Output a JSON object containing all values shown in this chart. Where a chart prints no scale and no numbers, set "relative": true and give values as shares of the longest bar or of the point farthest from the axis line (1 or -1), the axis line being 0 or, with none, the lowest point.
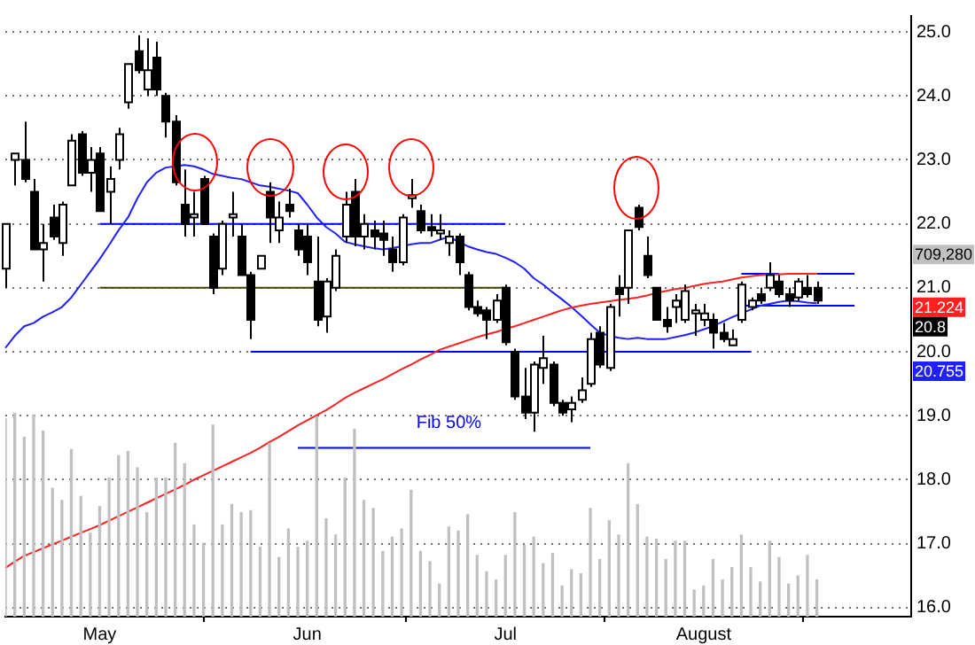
{
  "chart_data": [
    {
      "type": "candlestick",
      "categories": [
        null,
        null,
        null,
        null,
        null,
        null,
        null,
        null,
        null,
        null,
        "May",
        null,
        null,
        null,
        null,
        null,
        null,
        null,
        null,
        null,
        null,
        null,
        null,
        null,
        null,
        null,
        null,
        null,
        null,
        null,
        null,
        null,
        "Jun",
        null,
        null,
        null,
        null,
        null,
        null,
        null,
        null,
        null,
        null,
        null,
        null,
        null,
        null,
        null,
        null,
        null,
        null,
        null,
        null,
        "Jul",
        null,
        null,
        null,
        null,
        null,
        null,
        null,
        null,
        null,
        null,
        null,
        null,
        null,
        null,
        null,
        null,
        null,
        null,
        null,
        null,
        "August",
        null,
        null,
        null,
        null,
        null,
        null,
        null,
        null,
        null,
        null,
        null,
        null,
        null,
        null,
        null,
        null,
        null,
        null,
        null,
        null,
        null,
        null
      ],
      "ohlc": [
        [
          21.3,
          22.0,
          21.0,
          22.0
        ],
        [
          23.0,
          23.1,
          22.6,
          23.1
        ],
        [
          23.0,
          23.6,
          22.65,
          22.7
        ],
        [
          22.5,
          22.7,
          21.6,
          21.6
        ],
        [
          21.6,
          22.0,
          21.1,
          21.7
        ],
        [
          22.1,
          22.3,
          21.75,
          21.8
        ],
        [
          21.7,
          22.35,
          21.5,
          22.3
        ],
        [
          22.6,
          23.4,
          22.6,
          23.3
        ],
        [
          23.4,
          23.45,
          22.75,
          22.8
        ],
        [
          22.8,
          23.2,
          22.5,
          23.0
        ],
        [
          23.1,
          23.2,
          22.2,
          22.2
        ],
        [
          22.5,
          22.9,
          22.0,
          22.7
        ],
        [
          23.0,
          23.5,
          22.85,
          23.4
        ],
        [
          23.9,
          24.5,
          23.8,
          24.5
        ],
        [
          24.7,
          24.95,
          24.35,
          24.4
        ],
        [
          24.1,
          24.9,
          24.0,
          24.4
        ],
        [
          24.6,
          24.85,
          24.0,
          24.1
        ],
        [
          24.0,
          24.05,
          23.35,
          23.6
        ],
        [
          23.6,
          23.7,
          22.6,
          22.65
        ],
        [
          22.3,
          22.85,
          21.8,
          22.0
        ],
        [
          22.1,
          22.5,
          21.8,
          22.15
        ],
        [
          22.7,
          22.75,
          22.0,
          22.0
        ],
        [
          21.8,
          21.85,
          20.9,
          21.0
        ],
        [
          21.3,
          22.05,
          21.2,
          22.0
        ],
        [
          22.1,
          22.5,
          21.8,
          22.15
        ],
        [
          21.8,
          22.0,
          21.2,
          21.2
        ],
        [
          21.2,
          21.25,
          20.2,
          20.5
        ],
        [
          21.3,
          21.5,
          21.3,
          21.5
        ],
        [
          22.5,
          22.65,
          21.7,
          22.1
        ],
        [
          21.9,
          22.35,
          21.7,
          22.1
        ],
        [
          22.3,
          22.55,
          22.1,
          22.2
        ],
        [
          21.9,
          22.0,
          21.5,
          21.6
        ],
        [
          21.8,
          22.0,
          21.2,
          21.4
        ],
        [
          21.1,
          21.8,
          20.4,
          20.5
        ],
        [
          20.55,
          21.15,
          20.3,
          21.1
        ],
        [
          21.0,
          21.6,
          20.95,
          21.5
        ],
        [
          21.8,
          22.5,
          21.7,
          22.3
        ],
        [
          22.5,
          22.7,
          21.65,
          21.8
        ],
        [
          21.8,
          22.15,
          21.6,
          22.0
        ],
        [
          21.9,
          22.05,
          21.6,
          21.8
        ],
        [
          21.85,
          22.05,
          21.5,
          21.75
        ],
        [
          21.6,
          21.8,
          21.25,
          21.4
        ],
        [
          21.4,
          22.15,
          21.35,
          22.1
        ],
        [
          22.4,
          22.7,
          22.25,
          22.45
        ],
        [
          22.2,
          22.3,
          21.85,
          21.9
        ],
        [
          21.95,
          22.15,
          21.8,
          21.9
        ],
        [
          21.85,
          22.15,
          21.75,
          21.9
        ],
        [
          21.7,
          21.9,
          21.5,
          21.8
        ],
        [
          21.8,
          21.85,
          21.2,
          21.4
        ],
        [
          21.2,
          21.25,
          20.65,
          20.7
        ],
        [
          20.7,
          20.8,
          20.55,
          20.6
        ],
        [
          20.65,
          20.7,
          20.2,
          20.5
        ],
        [
          20.5,
          20.9,
          20.45,
          20.8
        ],
        [
          21.0,
          21.05,
          20.1,
          20.15
        ],
        [
          20.0,
          20.05,
          19.25,
          19.3
        ],
        [
          19.3,
          19.75,
          18.95,
          19.05
        ],
        [
          19.05,
          19.85,
          18.75,
          19.8
        ],
        [
          19.75,
          20.25,
          19.5,
          19.9
        ],
        [
          19.8,
          19.85,
          19.15,
          19.2
        ],
        [
          19.2,
          19.25,
          19.0,
          19.05
        ],
        [
          19.1,
          19.3,
          18.9,
          19.2
        ],
        [
          19.25,
          19.6,
          19.2,
          19.4
        ],
        [
          19.5,
          20.3,
          19.45,
          20.2
        ],
        [
          20.3,
          20.4,
          19.75,
          19.8
        ],
        [
          19.75,
          20.75,
          19.7,
          20.7
        ],
        [
          21.0,
          21.2,
          20.55,
          20.9
        ],
        [
          21.0,
          21.9,
          20.75,
          21.9
        ],
        [
          22.25,
          22.3,
          21.9,
          21.95
        ],
        [
          21.5,
          21.8,
          21.15,
          21.2
        ],
        [
          21.0,
          21.0,
          20.5,
          20.5
        ],
        [
          20.5,
          20.7,
          20.3,
          20.4
        ],
        [
          20.7,
          20.9,
          20.45,
          20.8
        ],
        [
          20.5,
          21.05,
          20.45,
          20.95
        ],
        [
          20.6,
          20.75,
          20.25,
          20.65
        ],
        [
          20.5,
          20.75,
          20.4,
          20.6
        ],
        [
          20.5,
          20.6,
          20.05,
          20.3
        ],
        [
          20.3,
          20.45,
          20.15,
          20.2
        ],
        [
          20.1,
          20.35,
          20.1,
          20.2
        ],
        [
          20.5,
          21.1,
          20.45,
          21.05
        ],
        [
          20.7,
          20.85,
          20.65,
          20.8
        ],
        [
          20.9,
          21.0,
          20.75,
          20.8
        ],
        [
          21.0,
          21.4,
          20.95,
          21.2
        ],
        [
          21.1,
          21.2,
          20.85,
          20.9
        ],
        [
          20.9,
          21.0,
          20.7,
          20.8
        ],
        [
          20.85,
          21.15,
          20.8,
          21.1
        ],
        [
          21.0,
          21.2,
          20.85,
          20.9
        ],
        [
          21.0,
          21.1,
          20.75,
          20.8
        ],
        null,
        null,
        null,
        null,
        null,
        null,
        null,
        null,
        null,
        null
      ],
      "colors": [
        "#ffffff",
        "#ffffff",
        "#000000",
        "#000000",
        "#ffffff",
        "#000000",
        "#ffffff",
        "#ffffff",
        "#000000",
        "#ffffff",
        "#000000",
        "#ffffff",
        "#ffffff",
        "#ffffff",
        "#000000",
        "#ffffff",
        "#000000",
        "#000000",
        "#000000",
        "#000000",
        "#ffffff",
        "#000000",
        "#000000",
        "#ffffff",
        "#ffffff",
        "#000000",
        "#000000",
        "#ffffff",
        "#000000",
        "#ffffff",
        "#000000",
        "#000000",
        "#000000",
        "#000000",
        "#ffffff",
        "#ffffff",
        "#ffffff",
        "#000000",
        "#ffffff",
        "#000000",
        "#000000",
        "#000000",
        "#ffffff",
        "#ffffff",
        "#000000",
        "#000000",
        "#ffffff",
        "#ffffff",
        "#000000",
        "#000000",
        "#000000",
        "#000000",
        "#ffffff",
        "#000000",
        "#000000",
        "#000000",
        "#ffffff",
        "#ffffff",
        "#000000",
        "#000000",
        "#ffffff",
        "#ffffff",
        "#ffffff",
        "#000000",
        "#ffffff",
        "#000000",
        "#ffffff",
        "#000000",
        "#000000",
        "#000000",
        "#000000",
        "#ffffff",
        "#ffffff",
        "#ffffff",
        "#ffffff",
        "#000000",
        "#000000",
        "#ffffff",
        "#ffffff",
        "#ffffff",
        "#000000",
        "#ffffff",
        "#000000",
        "#000000",
        "#ffffff",
        "#000000",
        "#000000",
        null,
        null,
        null,
        null,
        null,
        null,
        null,
        null,
        null,
        null
      ],
      "series": [
        {
          "type": "line",
          "color": "#ff2020",
          "values": [
            16.62,
            16.72,
            16.81,
            16.87,
            16.93,
            16.99,
            17.05,
            17.11,
            17.17,
            17.23,
            17.29,
            17.36,
            17.43,
            17.5,
            17.57,
            17.64,
            17.71,
            17.78,
            17.85,
            17.92,
            18.0,
            18.07,
            18.14,
            18.21,
            18.28,
            18.35,
            18.42,
            18.5,
            18.59,
            18.67,
            18.76,
            18.85,
            18.93,
            19.01,
            19.09,
            19.18,
            19.28,
            19.36,
            19.43,
            19.5,
            19.57,
            19.65,
            19.73,
            19.8,
            19.88,
            19.95,
            20.03,
            20.08,
            20.13,
            20.18,
            20.23,
            20.27,
            20.31,
            20.36,
            20.4,
            20.45,
            20.5,
            20.55,
            20.6,
            20.65,
            20.69,
            20.72,
            20.75,
            20.77,
            20.79,
            20.81,
            20.83,
            20.85,
            20.88,
            20.92,
            20.95,
            20.98,
            21.0,
            21.03,
            21.06,
            21.08,
            21.1,
            21.13,
            21.16,
            21.18,
            21.2,
            21.21,
            21.21,
            21.22,
            21.22,
            21.22,
            21.22,
            null,
            null,
            null,
            null,
            null,
            null,
            null,
            null,
            null,
            null
          ]
        },
        {
          "type": "line",
          "color": "#2020ff",
          "values": [
            20.06,
            20.25,
            20.4,
            20.45,
            20.55,
            20.62,
            20.7,
            20.85,
            21.05,
            21.25,
            21.45,
            21.67,
            21.9,
            22.1,
            22.4,
            22.65,
            22.8,
            22.88,
            22.9,
            22.92,
            22.9,
            22.85,
            22.78,
            22.75,
            22.72,
            22.7,
            22.65,
            22.6,
            22.58,
            22.55,
            22.52,
            22.48,
            22.3,
            22.1,
            21.95,
            21.85,
            21.72,
            21.68,
            21.65,
            21.62,
            21.6,
            21.62,
            21.65,
            21.68,
            21.7,
            21.7,
            21.75,
            21.8,
            21.72,
            21.65,
            21.6,
            21.56,
            21.53,
            21.47,
            21.4,
            21.3,
            21.15,
            21.05,
            20.93,
            20.82,
            20.7,
            20.57,
            20.43,
            20.3,
            20.25,
            20.22,
            20.2,
            20.22,
            20.2,
            20.2,
            20.2,
            20.23,
            20.26,
            20.3,
            20.35,
            20.4,
            20.47,
            20.54,
            20.6,
            20.66,
            20.72,
            20.75,
            20.78,
            20.8,
            20.79,
            20.77,
            20.76,
            null,
            null,
            null,
            null,
            null,
            null,
            null,
            null,
            null,
            null
          ]
        },
        {
          "type": "line",
          "color": "#0000ff",
          "values": [
            null,
            null,
            null,
            null,
            null,
            null,
            null,
            null,
            null,
            null,
            22,
            22,
            22,
            22,
            22,
            22,
            22,
            22,
            22,
            22,
            22,
            22,
            22,
            22,
            22,
            22,
            22,
            22,
            22,
            22,
            22,
            22,
            22,
            22,
            22,
            22,
            22,
            null,
            22,
            22,
            22,
            22,
            22,
            22,
            22,
            22,
            22,
            22,
            22,
            22,
            22,
            22,
            22,
            22,
            null,
            null,
            null,
            null,
            null,
            null,
            null,
            null,
            null,
            null,
            null,
            null,
            null,
            null,
            null,
            null,
            null,
            null,
            null,
            null,
            null,
            null,
            null,
            null,
            null,
            null,
            null,
            null,
            null,
            null,
            null,
            null,
            null,
            null,
            null,
            null,
            null,
            null,
            null,
            null,
            null,
            null,
            null
          ]
        },
        {
          "type": "line",
          "color": "#404000",
          "values": [
            null,
            null,
            null,
            null,
            null,
            null,
            null,
            null,
            null,
            null,
            21,
            21,
            21,
            21,
            21,
            21,
            21,
            21,
            21,
            21,
            21,
            21,
            21,
            21,
            21,
            21,
            21,
            21,
            21,
            21,
            21,
            21,
            21,
            21,
            null,
            21,
            21,
            21,
            21,
            21,
            21,
            21,
            21,
            21,
            21,
            21,
            21,
            21,
            21,
            21,
            21,
            21,
            21,
            21,
            null,
            null,
            null,
            null,
            null,
            null,
            null,
            null,
            null,
            null,
            null,
            null,
            null,
            null,
            null,
            null,
            null,
            null,
            null,
            null,
            null,
            null,
            null,
            null,
            null,
            null,
            null,
            null,
            null,
            null,
            null,
            null,
            null,
            null,
            null,
            null,
            null,
            null,
            null,
            null,
            null,
            null,
            null
          ]
        },
        {
          "type": "line",
          "color": "#0000ff",
          "values": [
            null,
            null,
            null,
            null,
            null,
            null,
            null,
            null,
            null,
            null,
            null,
            null,
            null,
            null,
            null,
            null,
            null,
            null,
            null,
            null,
            null,
            null,
            null,
            null,
            null,
            null,
            20,
            20,
            20,
            20,
            20,
            20,
            20,
            20,
            20,
            20,
            20,
            20,
            20,
            20,
            20,
            20,
            20,
            20,
            20,
            20,
            20,
            20,
            20,
            20,
            20,
            20,
            20,
            20,
            20,
            20,
            20,
            20,
            20,
            20,
            20,
            20,
            20,
            20,
            20,
            20,
            20,
            20,
            20,
            20,
            20,
            20,
            20,
            20,
            20,
            20,
            20,
            20,
            20,
            20,
            null,
            null,
            null,
            null,
            null,
            null,
            null,
            null,
            null,
            null,
            null,
            null,
            null,
            null,
            null,
            null,
            null
          ]
        },
        {
          "name": "Fib 50%",
          "type": "line",
          "color": "#0000ff",
          "values": [
            null,
            null,
            null,
            null,
            null,
            null,
            null,
            null,
            null,
            null,
            null,
            null,
            null,
            null,
            null,
            null,
            null,
            null,
            null,
            null,
            null,
            null,
            null,
            null,
            null,
            null,
            null,
            null,
            null,
            null,
            null,
            18.5,
            18.5,
            18.5,
            18.5,
            18.5,
            18.5,
            18.5,
            18.5,
            18.5,
            18.5,
            18.5,
            18.5,
            18.5,
            18.5,
            18.5,
            18.5,
            18.5,
            18.5,
            18.5,
            18.5,
            18.5,
            18.5,
            18.5,
            18.5,
            18.5,
            18.5,
            18.5,
            18.5,
            18.5,
            18.5,
            18.5,
            18.5,
            null,
            null,
            null,
            null,
            null,
            null,
            null,
            null,
            null,
            null,
            null,
            null,
            null,
            null,
            null,
            null,
            null,
            null,
            null,
            null,
            null,
            null,
            null,
            null,
            null,
            null,
            null,
            null,
            null,
            null,
            null,
            null,
            null,
            null
          ]
        },
        {
          "type": "line",
          "color": "#0000ff",
          "values": [
            null,
            null,
            null,
            null,
            null,
            null,
            null,
            null,
            null,
            null,
            null,
            null,
            null,
            null,
            null,
            null,
            null,
            null,
            null,
            null,
            null,
            null,
            null,
            null,
            null,
            null,
            null,
            null,
            null,
            null,
            null,
            null,
            null,
            null,
            null,
            null,
            null,
            null,
            null,
            null,
            null,
            null,
            null,
            null,
            null,
            null,
            null,
            null,
            null,
            null,
            null,
            null,
            null,
            null,
            null,
            null,
            null,
            null,
            null,
            null,
            null,
            null,
            null,
            null,
            null,
            null,
            null,
            null,
            null,
            null,
            null,
            null,
            null,
            null,
            null,
            null,
            null,
            null,
            21.22,
            21.22,
            21.22,
            21.22,
            21.22,
            null,
            null,
            null,
            21.22,
            21.22,
            21.22,
            21.22,
            21.22,
            null,
            null,
            null,
            null,
            null,
            null
          ]
        },
        {
          "type": "line",
          "color": "#0000ff",
          "values": [
            null,
            null,
            null,
            null,
            null,
            null,
            null,
            null,
            null,
            null,
            null,
            null,
            null,
            null,
            null,
            null,
            null,
            null,
            null,
            null,
            null,
            null,
            null,
            null,
            null,
            null,
            null,
            null,
            null,
            null,
            null,
            null,
            null,
            null,
            null,
            null,
            null,
            null,
            null,
            null,
            null,
            null,
            null,
            null,
            null,
            null,
            null,
            null,
            null,
            null,
            null,
            null,
            null,
            null,
            null,
            null,
            null,
            null,
            null,
            null,
            null,
            null,
            null,
            null,
            null,
            null,
            null,
            null,
            null,
            null,
            null,
            null,
            null,
            null,
            null,
            null,
            null,
            null,
            20.72,
            20.72,
            20.72,
            20.72,
            20.72,
            20.72,
            20.72,
            20.72,
            20.72,
            20.72,
            20.72,
            20.72,
            20.72,
            null,
            null,
            null,
            null,
            null,
            null
          ]
        }
      ],
      "annotations": [
        "709,280",
        "21.224",
        "20.8",
        "20.755"
      ],
      "ylim": [
        15.86,
        25.25
      ],
      "yticks": [
        {
          "value": 16,
          "label": "16.0"
        },
        {
          "value": 17,
          "label": "17.0"
        },
        {
          "value": 18,
          "label": "18.0"
        },
        {
          "value": 19,
          "label": "19.0"
        },
        {
          "value": 20,
          "label": "20.0"
        },
        {
          "value": 21,
          "label": "21.0"
        },
        {
          "value": 22,
          "label": "22.0"
        },
        {
          "value": 23,
          "label": "23.0"
        },
        {
          "value": 24,
          "label": "24.0"
        },
        {
          "value": 25,
          "label": "25.0"
        }
      ],
      "grid": "y"
    },
    {
      "type": "bar",
      "relative": true,
      "color": "#c0c0c0",
      "categories": [
        null,
        null,
        null,
        null,
        null,
        null,
        null,
        null,
        null,
        null,
        null,
        null,
        null,
        null,
        null,
        null,
        null,
        null,
        null,
        null,
        null,
        null,
        null,
        null,
        null,
        null,
        null,
        null,
        null,
        null,
        null,
        null,
        null,
        null,
        null,
        null,
        null,
        null,
        null,
        null,
        null,
        null,
        null,
        null,
        null,
        null,
        null,
        null,
        null,
        null,
        null,
        null,
        null,
        null,
        null,
        null,
        null,
        null,
        null,
        null,
        null,
        null,
        null,
        null,
        null,
        null,
        null,
        null,
        null,
        null,
        null,
        null,
        null,
        null,
        null,
        null,
        null,
        null,
        null,
        null,
        null,
        null,
        null,
        null,
        null,
        null,
        null,
        null,
        null,
        null,
        null,
        null,
        null,
        null,
        null,
        null,
        null
      ],
      "values": [
        0.97,
        1,
        0.88,
        0.99,
        0.91,
        0.63,
        0.57,
        0.82,
        0.59,
        0.41,
        0.54,
        0.68,
        0.79,
        0.81,
        0.73,
        0.51,
        0.68,
        0.68,
        0.85,
        0.75,
        0.45,
        0.36,
        0.94,
        0.45,
        0.55,
        0.51,
        0.52,
        0.34,
        0.85,
        0.29,
        0.43,
        0.34,
        0.37,
        0.98,
        0.48,
        0.4,
        0.68,
        0.92,
        0.57,
        0.53,
        0.32,
        0.39,
        0.43,
        0.62,
        0.32,
        0.27,
        0.16,
        0.44,
        0.42,
        0.5,
        0.3,
        0.22,
        0.18,
        0.3,
        0.51,
        0.35,
        0.39,
        0.26,
        0.31,
        0.15,
        0.23,
        0.21,
        0.53,
        0.28,
        0.47,
        0.4,
        0.75,
        0.55,
        0.39,
        0.38,
        0.28,
        0.37,
        0.37,
        0.13,
        0.15,
        0.28,
        0.18,
        0.24,
        0.4,
        0.24,
        0.17,
        0.37,
        0.29,
        0.16,
        0.2,
        0.3,
        0.18,
        null,
        null,
        null,
        null,
        null,
        null,
        null,
        null,
        null,
        null
      ]
    }
  ]
}
